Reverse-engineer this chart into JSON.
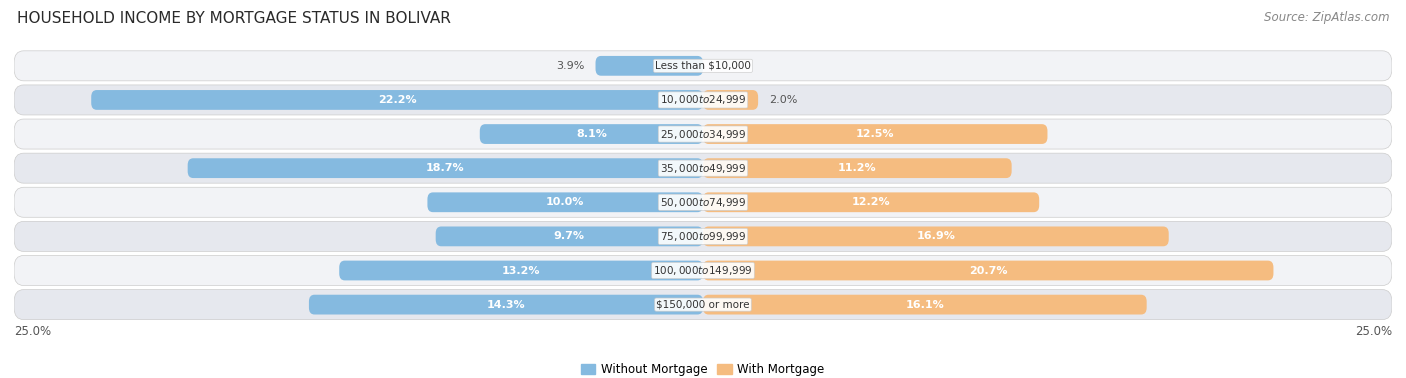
{
  "title": "HOUSEHOLD INCOME BY MORTGAGE STATUS IN BOLIVAR",
  "source": "Source: ZipAtlas.com",
  "categories": [
    "Less than $10,000",
    "$10,000 to $24,999",
    "$25,000 to $34,999",
    "$35,000 to $49,999",
    "$50,000 to $74,999",
    "$75,000 to $99,999",
    "$100,000 to $149,999",
    "$150,000 or more"
  ],
  "without_mortgage": [
    3.9,
    22.2,
    8.1,
    18.7,
    10.0,
    9.7,
    13.2,
    14.3
  ],
  "with_mortgage": [
    0.0,
    2.0,
    12.5,
    11.2,
    12.2,
    16.9,
    20.7,
    16.1
  ],
  "color_without": "#85BAE0",
  "color_with": "#F5BC80",
  "bg_light": "#f2f3f6",
  "bg_dark": "#e6e8ee",
  "max_val": 25.0,
  "legend_without": "Without Mortgage",
  "legend_with": "With Mortgage",
  "title_fontsize": 11,
  "source_fontsize": 8.5,
  "bar_label_fontsize": 8.0,
  "category_fontsize": 7.5,
  "axis_tick_label": "25.0%"
}
